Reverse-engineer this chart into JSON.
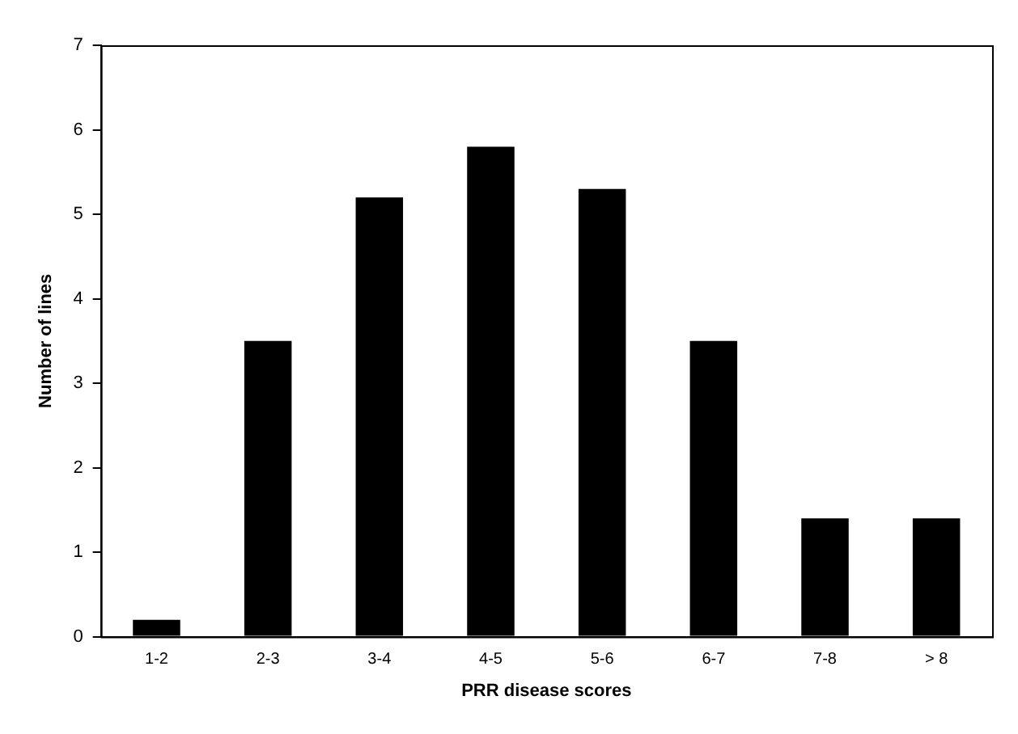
{
  "chart_data": {
    "type": "bar",
    "xlabel": "PRR disease scores",
    "ylabel": "Number of lines",
    "categories": [
      "1-2",
      "2-3",
      "3-4",
      "4-5",
      "5-6",
      "6-7",
      "7-8",
      "> 8"
    ],
    "values": [
      0.2,
      3.5,
      5.2,
      5.8,
      5.3,
      3.5,
      1.4,
      1.4
    ],
    "color": "#000000",
    "ylim": [
      0,
      7
    ],
    "yticks": [
      0,
      1,
      2,
      3,
      4,
      5,
      6,
      7
    ],
    "grid": false,
    "legend": false
  }
}
